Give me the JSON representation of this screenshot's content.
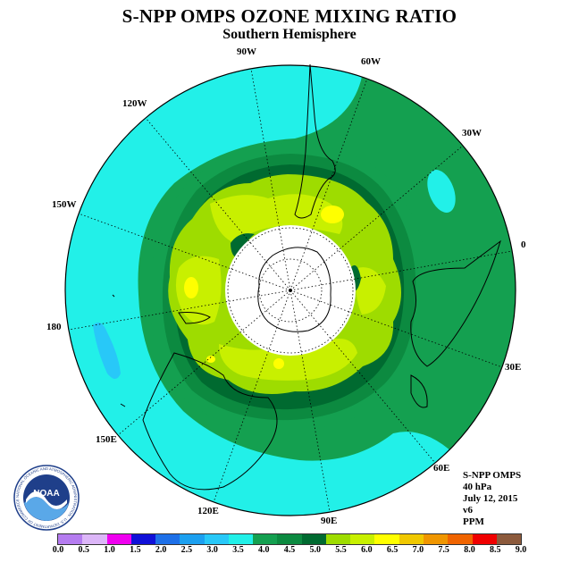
{
  "header": {
    "title": "S-NPP OMPS OZONE MIXING RATIO",
    "subtitle": "Southern Hemisphere"
  },
  "longitude_labels": [
    "90W",
    "60W",
    "30W",
    "0",
    "30E",
    "60E",
    "90E",
    "120E",
    "150E",
    "180",
    "150W",
    "120W"
  ],
  "info": {
    "instrument": "S-NPP OMPS",
    "level": "40 hPa",
    "date": "July 12, 2015",
    "version": "v6",
    "units": "PPM"
  },
  "logo": {
    "name": "NOAA",
    "ring_text": "NATIONAL OCEANIC AND ATMOSPHERIC ADMINISTRATION · U.S. DEPARTMENT OF COMMERCE"
  },
  "colorbar": {
    "tick_labels": [
      "0.0",
      "0.5",
      "1.0",
      "1.5",
      "2.0",
      "2.5",
      "3.0",
      "3.5",
      "4.0",
      "4.5",
      "5.0",
      "5.5",
      "6.0",
      "6.5",
      "7.0",
      "7.5",
      "8.0",
      "8.5",
      "9.0"
    ],
    "colors": [
      "#b57cf0",
      "#dcb6f8",
      "#f000f0",
      "#1010d8",
      "#1e70e8",
      "#1ca0f0",
      "#28c8f8",
      "#22f0e8",
      "#14a050",
      "#0c8a40",
      "#006a30",
      "#9edc00",
      "#c8f000",
      "#ffff00",
      "#f0c800",
      "#f09600",
      "#f06400",
      "#f00000",
      "#8c5a3c"
    ]
  },
  "map": {
    "level_colors": {
      "3.0-3.5": "#28c8f8",
      "3.5-4.0": "#22f0e8",
      "4.0-4.5": "#14a050",
      "4.5-5.0": "#0c8a40",
      "5.0-5.5": "#006a30",
      "5.5-6.0": "#9edc00",
      "6.0-6.5": "#c8f000",
      "6.5-7.0": "#ffff00"
    }
  }
}
